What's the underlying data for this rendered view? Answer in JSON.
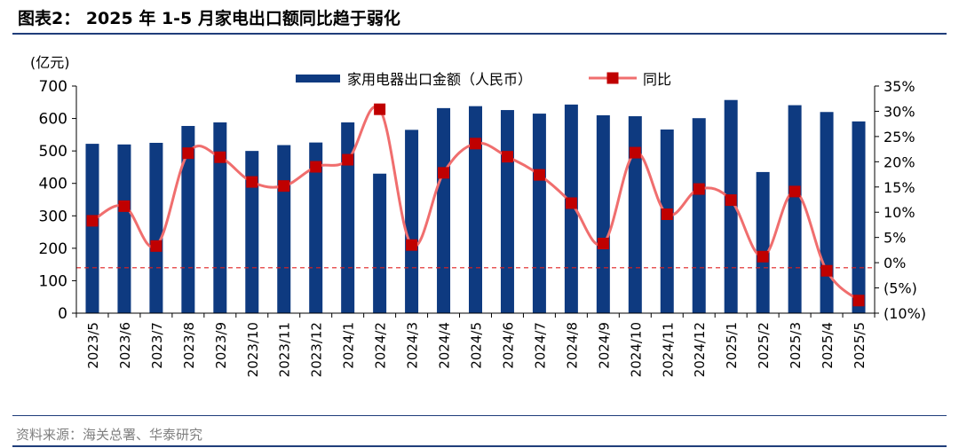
{
  "header": {
    "title": "图表2：  2025 年 1-5 月家电出口额同比趋于弱化"
  },
  "footer": {
    "source": "资料来源：海关总署、华泰研究"
  },
  "colors": {
    "bar": "#0e3a80",
    "line": "#f06e6e",
    "marker": "#c00000",
    "ref_line": "#e02020",
    "rule": "#1f3d7a"
  },
  "chart_data": {
    "type": "bar+line",
    "ylabel_left": "(亿元)",
    "categories": [
      "2023/5",
      "2023/6",
      "2023/7",
      "2023/8",
      "2023/9",
      "2023/10",
      "2023/11",
      "2023/12",
      "2024/1",
      "2024/2",
      "2024/3",
      "2024/4",
      "2024/5",
      "2024/6",
      "2024/7",
      "2024/8",
      "2024/9",
      "2024/10",
      "2024/11",
      "2024/12",
      "2025/1",
      "2025/2",
      "2025/3",
      "2025/4",
      "2025/5"
    ],
    "series": [
      {
        "name": "家用电器出口金额（人民币）",
        "type": "bar",
        "axis": "left",
        "values": [
          522,
          520,
          525,
          577,
          588,
          500,
          518,
          526,
          588,
          430,
          565,
          632,
          638,
          626,
          615,
          643,
          610,
          607,
          566,
          601,
          657,
          435,
          641,
          620,
          591
        ]
      },
      {
        "name": "同比",
        "type": "line",
        "axis": "right",
        "unit": "%",
        "values": [
          8.3,
          11.2,
          3.3,
          21.7,
          20.9,
          16.0,
          15.2,
          19.0,
          20.4,
          30.4,
          3.5,
          17.8,
          23.6,
          21.0,
          17.4,
          11.8,
          3.8,
          21.8,
          9.6,
          14.6,
          12.4,
          1.2,
          14.1,
          -1.6,
          -7.5
        ]
      }
    ],
    "left_axis": {
      "min": 0,
      "max": 700,
      "ticks": [
        0,
        100,
        200,
        300,
        400,
        500,
        600,
        700
      ],
      "tick_labels": [
        "0",
        "100",
        "200",
        "300",
        "400",
        "500",
        "600",
        "700"
      ]
    },
    "right_axis": {
      "min": -10,
      "max": 35,
      "ticks": [
        -10,
        -5,
        0,
        5,
        10,
        15,
        20,
        25,
        30,
        35
      ],
      "tick_labels": [
        "(10%)",
        "(5%)",
        "0%",
        "5%",
        "10%",
        "15%",
        "20%",
        "25%",
        "30%",
        "35%"
      ]
    },
    "reference_line": {
      "value": -1,
      "axis": "right",
      "style": "dashed"
    },
    "legend": {
      "position": "top-center"
    },
    "grid": false
  }
}
